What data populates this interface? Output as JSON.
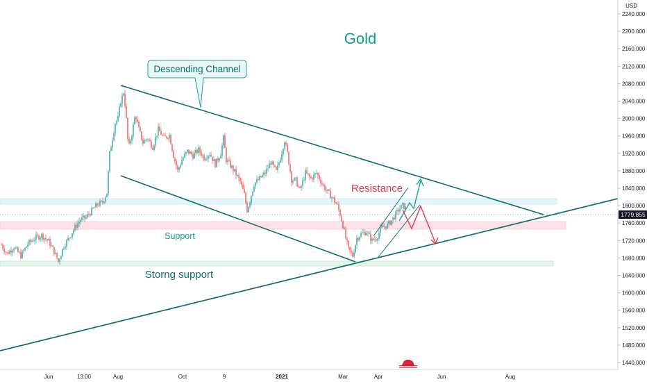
{
  "chart_data": {
    "type": "candlestick",
    "title": "Gold",
    "currency": "USD",
    "last_price": "1779.855",
    "y_ticks": [
      "2240.000",
      "2200.000",
      "2160.000",
      "2120.000",
      "2080.000",
      "2040.000",
      "2000.000",
      "1960.000",
      "1920.000",
      "1880.000",
      "1840.000",
      "1800.000",
      "1760.000",
      "1720.000",
      "1680.000",
      "1640.000",
      "1600.000",
      "1560.000",
      "1520.000",
      "1480.000",
      "1440.000"
    ],
    "ylim": [
      1420,
      2260
    ],
    "x_ticks": [
      "Jun",
      "13:00",
      "Aug",
      "Oct",
      "9",
      "2021",
      "Mar",
      "Apr",
      "Jun",
      "Aug"
    ],
    "annotations": {
      "channel_label": "Descending Channel",
      "resistance": "Resistance",
      "support": "Support",
      "strong_support": "Storng support"
    },
    "price_path": [
      [
        2,
        1710
      ],
      [
        10,
        1690
      ],
      [
        20,
        1705
      ],
      [
        30,
        1685
      ],
      [
        40,
        1712
      ],
      [
        50,
        1725
      ],
      [
        60,
        1732
      ],
      [
        70,
        1718
      ],
      [
        78,
        1695
      ],
      [
        84,
        1672
      ],
      [
        92,
        1708
      ],
      [
        100,
        1728
      ],
      [
        108,
        1750
      ],
      [
        116,
        1768
      ],
      [
        124,
        1773
      ],
      [
        132,
        1788
      ],
      [
        140,
        1802
      ],
      [
        148,
        1808
      ],
      [
        154,
        1830
      ],
      [
        158,
        1920
      ],
      [
        162,
        1955
      ],
      [
        166,
        1990
      ],
      [
        170,
        2000
      ],
      [
        174,
        2040
      ],
      [
        178,
        2060
      ],
      [
        181,
        2020
      ],
      [
        185,
        1930
      ],
      [
        190,
        1965
      ],
      [
        195,
        2010
      ],
      [
        200,
        1975
      ],
      [
        206,
        1945
      ],
      [
        212,
        1955
      ],
      [
        220,
        1935
      ],
      [
        228,
        1975
      ],
      [
        236,
        1955
      ],
      [
        244,
        1962
      ],
      [
        250,
        1915
      ],
      [
        256,
        1880
      ],
      [
        262,
        1905
      ],
      [
        270,
        1925
      ],
      [
        278,
        1915
      ],
      [
        286,
        1928
      ],
      [
        294,
        1910
      ],
      [
        302,
        1920
      ],
      [
        310,
        1895
      ],
      [
        318,
        1920
      ],
      [
        322,
        1955
      ],
      [
        326,
        1905
      ],
      [
        332,
        1892
      ],
      [
        338,
        1878
      ],
      [
        346,
        1855
      ],
      [
        352,
        1825
      ],
      [
        356,
        1790
      ],
      [
        360,
        1812
      ],
      [
        366,
        1850
      ],
      [
        374,
        1862
      ],
      [
        382,
        1875
      ],
      [
        390,
        1900
      ],
      [
        398,
        1878
      ],
      [
        404,
        1910
      ],
      [
        410,
        1950
      ],
      [
        414,
        1920
      ],
      [
        420,
        1860
      ],
      [
        426,
        1858
      ],
      [
        432,
        1835
      ],
      [
        440,
        1875
      ],
      [
        448,
        1862
      ],
      [
        456,
        1875
      ],
      [
        464,
        1850
      ],
      [
        470,
        1835
      ],
      [
        478,
        1820
      ],
      [
        486,
        1800
      ],
      [
        490,
        1780
      ],
      [
        494,
        1755
      ],
      [
        498,
        1725
      ],
      [
        502,
        1700
      ],
      [
        508,
        1685
      ],
      [
        514,
        1725
      ],
      [
        520,
        1735
      ],
      [
        528,
        1740
      ],
      [
        536,
        1720
      ],
      [
        542,
        1725
      ],
      [
        550,
        1750
      ],
      [
        558,
        1755
      ],
      [
        566,
        1770
      ],
      [
        574,
        1790
      ],
      [
        580,
        1800
      ],
      [
        584,
        1795
      ]
    ]
  }
}
